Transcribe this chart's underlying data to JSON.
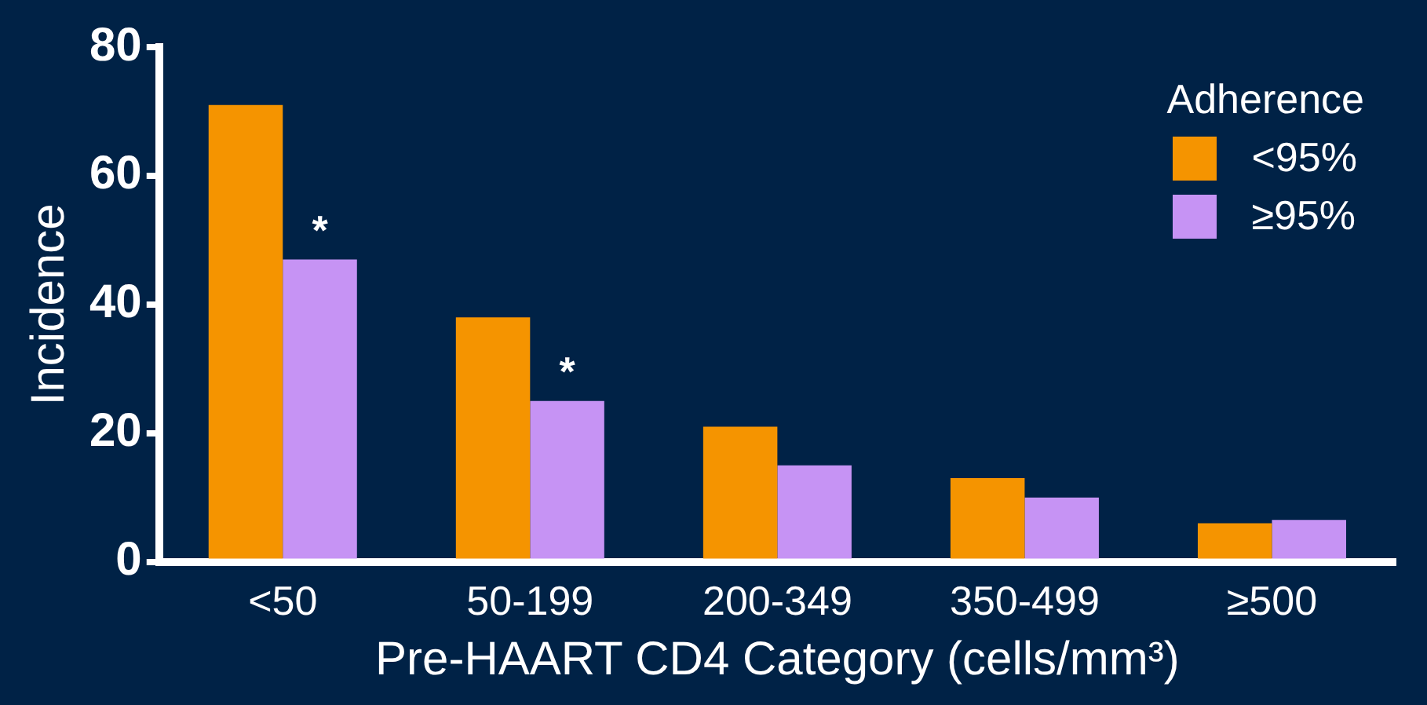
{
  "chart_data": {
    "type": "bar",
    "xlabel": "Pre-HAART CD4 Category (cells/mm³)",
    "ylabel": "Incidence",
    "legend_title": "Adherence",
    "categories": [
      "<50",
      "50-199",
      "200-349",
      "350-499",
      "≥500"
    ],
    "series": [
      {
        "name": "<95%",
        "color": "#f59400",
        "values": [
          71,
          38,
          21,
          13,
          6
        ]
      },
      {
        "name": "≥95%",
        "color": "#c693f4",
        "values": [
          47,
          25,
          15,
          10,
          6.5
        ]
      }
    ],
    "ylim": [
      0,
      80
    ],
    "yticks": [
      0,
      20,
      40,
      60,
      80
    ],
    "grid": false,
    "legend": "top right",
    "annotations": [
      {
        "text": "*",
        "x": "<50",
        "y": 47
      },
      {
        "text": "*",
        "x": "50-199",
        "y": 25
      }
    ]
  }
}
